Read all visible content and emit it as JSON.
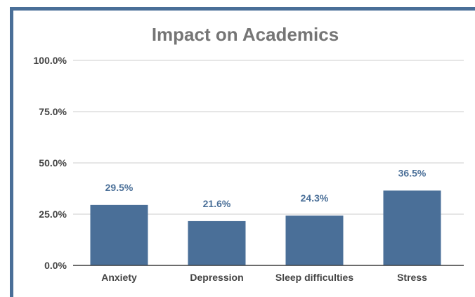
{
  "chart_data": {
    "type": "bar",
    "title": "Impact on Academics",
    "categories": [
      "Anxiety",
      "Depression",
      "Sleep difficulties",
      "Stress"
    ],
    "values": [
      29.5,
      21.6,
      24.3,
      36.5
    ],
    "value_labels": [
      "29.5%",
      "21.6%",
      "24.3%",
      "36.5%"
    ],
    "yticks": [
      0,
      25,
      50,
      75,
      100
    ],
    "ytick_labels": [
      "0.0%",
      "25.0%",
      "50.0%",
      "75.0%",
      "100.0%"
    ],
    "ylim": [
      0,
      100
    ],
    "xlabel": "",
    "ylabel": "",
    "grid": true,
    "legend": "none",
    "bar_color": "#4a6f98",
    "frame_color": "#4a6f98"
  }
}
